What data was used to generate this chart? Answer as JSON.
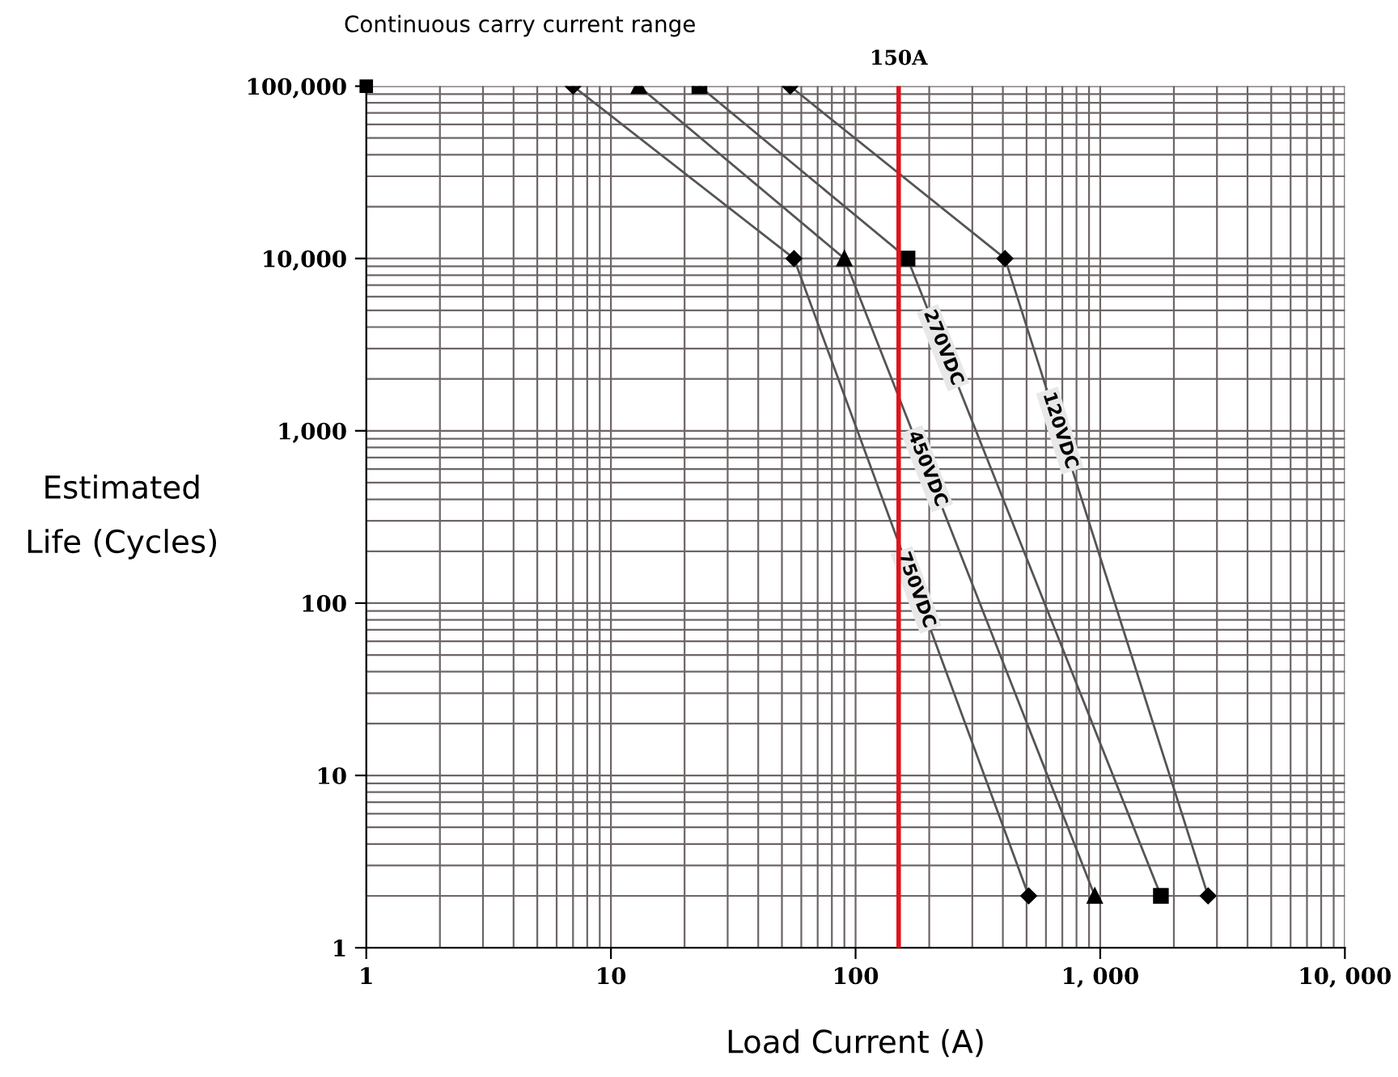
{
  "chart_data": {
    "type": "line",
    "xlabel": "Load Current (A)",
    "ylabel": "Estimated\nLife (Cycles)",
    "log": "xy",
    "xlim": [
      1,
      10000
    ],
    "ylim": [
      1,
      100000
    ],
    "xticks": [
      1,
      10,
      100,
      {
        "value": 1000,
        "label": "1, 000"
      },
      {
        "value": 10000,
        "label": "10, 000"
      }
    ],
    "yticks": [
      1,
      10,
      100,
      {
        "value": 1000,
        "label": "1,000"
      },
      {
        "value": 10000,
        "label": "10,000"
      },
      {
        "value": 100000,
        "label": "100,000"
      }
    ],
    "grid": true,
    "line_style": "solid",
    "series": [
      {
        "name": "750VDC",
        "color": "#555555",
        "marker": "diamond",
        "x": [
          7,
          56,
          510
        ],
        "values": [
          100000,
          10000,
          2
        ]
      },
      {
        "name": "450VDC",
        "color": "#555555",
        "marker": "triangle",
        "x": [
          13,
          90,
          950
        ],
        "values": [
          100000,
          10000,
          2
        ]
      },
      {
        "name": "270VDC",
        "color": "#555555",
        "marker": "square",
        "x": [
          23,
          163,
          1770
        ],
        "values": [
          100000,
          10000,
          2
        ]
      },
      {
        "name": "120VDC",
        "color": "#555555",
        "marker": "diamond",
        "x": [
          54,
          408,
          2760
        ],
        "values": [
          100000,
          10000,
          2
        ]
      }
    ],
    "ref_lines": [
      {
        "axis": "x",
        "value": 150,
        "label": "150A",
        "color": "#e0141e"
      }
    ],
    "annotations": [
      {
        "text": "Continuous carry current range",
        "x": 1,
        "y": 100000
      }
    ]
  }
}
